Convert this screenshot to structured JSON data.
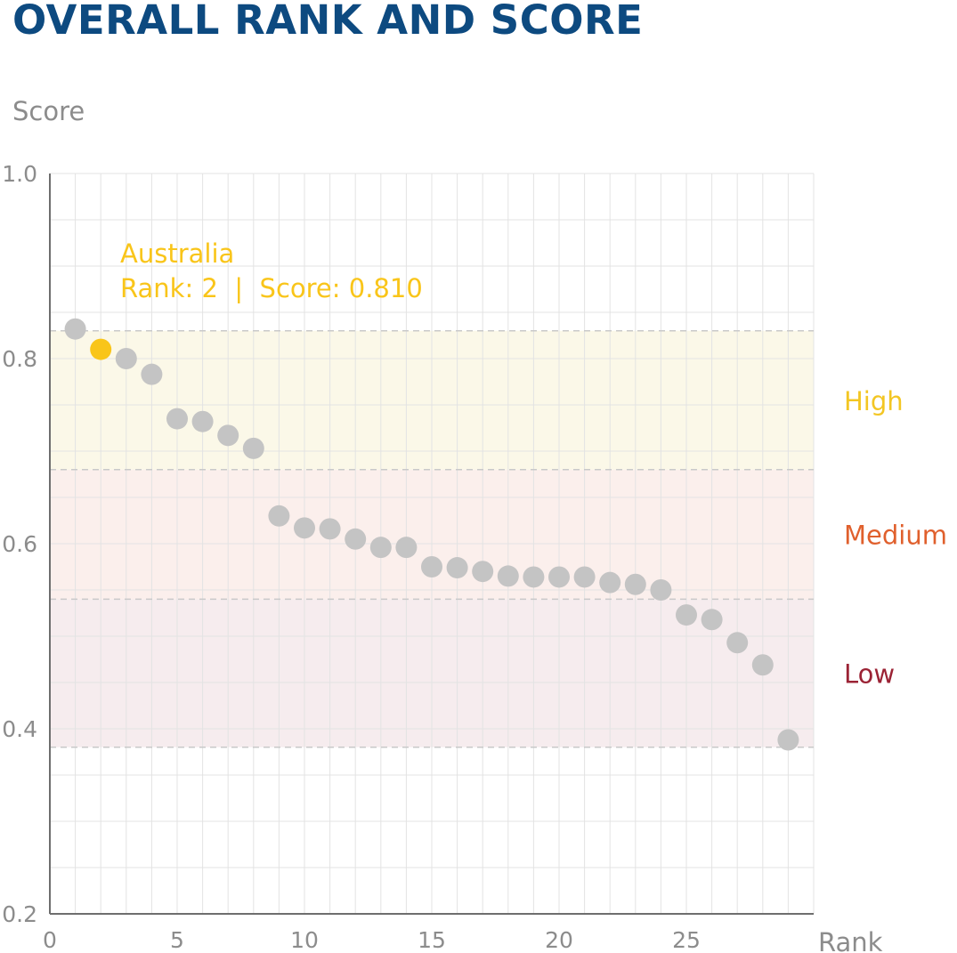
{
  "page": {
    "title": "OVERALL RANK AND SCORE"
  },
  "chart_data": {
    "type": "scatter",
    "title": "OVERALL RANK AND SCORE",
    "xlabel": "Rank",
    "ylabel": "Score",
    "xlim": [
      0,
      30
    ],
    "ylim": [
      0.2,
      1.0
    ],
    "x_ticks": [
      0,
      5,
      10,
      15,
      20,
      25
    ],
    "y_ticks": [
      0.2,
      0.4,
      0.6,
      0.8,
      1.0
    ],
    "y_tick_labels": [
      "0.2",
      "0.4",
      "0.6",
      "0.8",
      "1.0"
    ],
    "grid": true,
    "bands": [
      {
        "label": "High",
        "from": 0.68,
        "to": 0.83,
        "color": "#f3c623",
        "fill": "#fbf8e8"
      },
      {
        "label": "Medium",
        "from": 0.54,
        "to": 0.68,
        "color": "#e0602d",
        "fill": "#fbefec"
      },
      {
        "label": "Low",
        "from": 0.38,
        "to": 0.54,
        "color": "#9b2335",
        "fill": "#f6ecee"
      }
    ],
    "points": [
      {
        "x": 1,
        "y": 0.832
      },
      {
        "x": 2,
        "y": 0.81
      },
      {
        "x": 3,
        "y": 0.8
      },
      {
        "x": 4,
        "y": 0.783
      },
      {
        "x": 5,
        "y": 0.735
      },
      {
        "x": 6,
        "y": 0.732
      },
      {
        "x": 7,
        "y": 0.717
      },
      {
        "x": 8,
        "y": 0.703
      },
      {
        "x": 9,
        "y": 0.63
      },
      {
        "x": 10,
        "y": 0.617
      },
      {
        "x": 11,
        "y": 0.616
      },
      {
        "x": 12,
        "y": 0.605
      },
      {
        "x": 13,
        "y": 0.596
      },
      {
        "x": 14,
        "y": 0.596
      },
      {
        "x": 15,
        "y": 0.575
      },
      {
        "x": 16,
        "y": 0.574
      },
      {
        "x": 17,
        "y": 0.57
      },
      {
        "x": 18,
        "y": 0.565
      },
      {
        "x": 19,
        "y": 0.564
      },
      {
        "x": 20,
        "y": 0.564
      },
      {
        "x": 21,
        "y": 0.564
      },
      {
        "x": 22,
        "y": 0.558
      },
      {
        "x": 23,
        "y": 0.556
      },
      {
        "x": 24,
        "y": 0.55
      },
      {
        "x": 25,
        "y": 0.523
      },
      {
        "x": 26,
        "y": 0.518
      },
      {
        "x": 27,
        "y": 0.493
      },
      {
        "x": 28,
        "y": 0.469
      },
      {
        "x": 29,
        "y": 0.388
      }
    ],
    "highlight": {
      "x": 2,
      "y": 0.81,
      "color": "#f9c51a",
      "name": "Australia",
      "detail": "Rank: 2  |  Score: 0.810"
    },
    "point_color": "#c4c4c4"
  }
}
